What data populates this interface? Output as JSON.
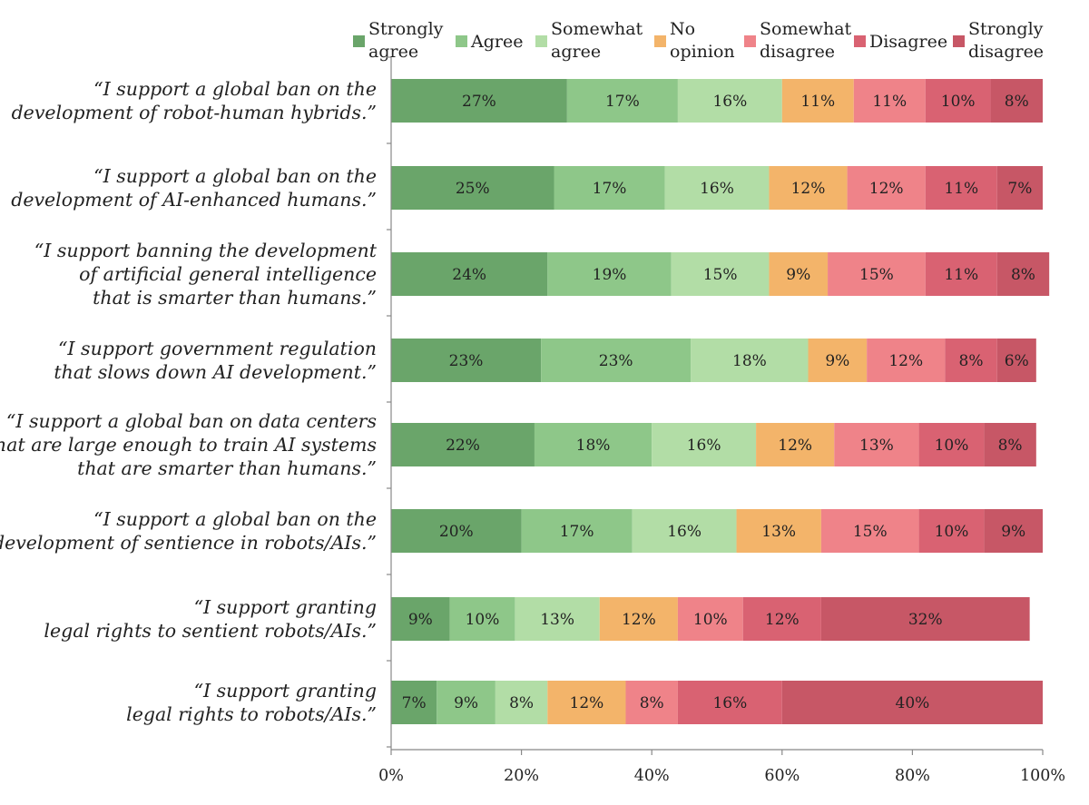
{
  "chart_data": {
    "type": "bar",
    "orientation": "horizontal",
    "stacked": true,
    "normalized": true,
    "title": "",
    "xlabel": "",
    "ylabel": "",
    "xlim": [
      0,
      100
    ],
    "x_ticks": [
      "0%",
      "20%",
      "40%",
      "60%",
      "80%",
      "100%"
    ],
    "legend_position": "top-right",
    "series": [
      {
        "name": "Strongly\nagree",
        "color": "#6aa56a"
      },
      {
        "name": "Agree",
        "color": "#8ec789"
      },
      {
        "name": "Somewhat\nagree",
        "color": "#b2dda6"
      },
      {
        "name": "No\nopinion",
        "color": "#f3b46a"
      },
      {
        "name": "Somewhat\ndisagree",
        "color": "#ef8389"
      },
      {
        "name": "Disagree",
        "color": "#d96272"
      },
      {
        "name": "Strongly\ndisagree",
        "color": "#c75766"
      }
    ],
    "categories": [
      "“I support a global ban on the\ndevelopment of robot-human hybrids.”",
      "“I support a global ban on the\ndevelopment of AI-enhanced humans.”",
      "“I support banning the development\nof artificial general intelligence\nthat is smarter than humans.”",
      "“I support government regulation\nthat slows down AI development.”",
      "“I support a global ban on data centers\nthat are large enough to train AI systems\nthat are smarter than humans.”",
      "“I support a global ban on the\ndevelopment of sentience in robots/AIs.”",
      "“I support granting\nlegal rights to sentient robots/AIs.”",
      "“I support granting\nlegal rights to robots/AIs.”"
    ],
    "values": [
      [
        27,
        17,
        16,
        11,
        11,
        10,
        8
      ],
      [
        25,
        17,
        16,
        12,
        12,
        11,
        7
      ],
      [
        24,
        19,
        15,
        9,
        15,
        11,
        8
      ],
      [
        23,
        23,
        18,
        9,
        12,
        8,
        6
      ],
      [
        22,
        18,
        16,
        12,
        13,
        10,
        8
      ],
      [
        20,
        17,
        16,
        13,
        15,
        10,
        9
      ],
      [
        9,
        10,
        13,
        12,
        10,
        12,
        32
      ],
      [
        7,
        9,
        8,
        12,
        8,
        16,
        40
      ]
    ],
    "label_suffix": "%"
  }
}
